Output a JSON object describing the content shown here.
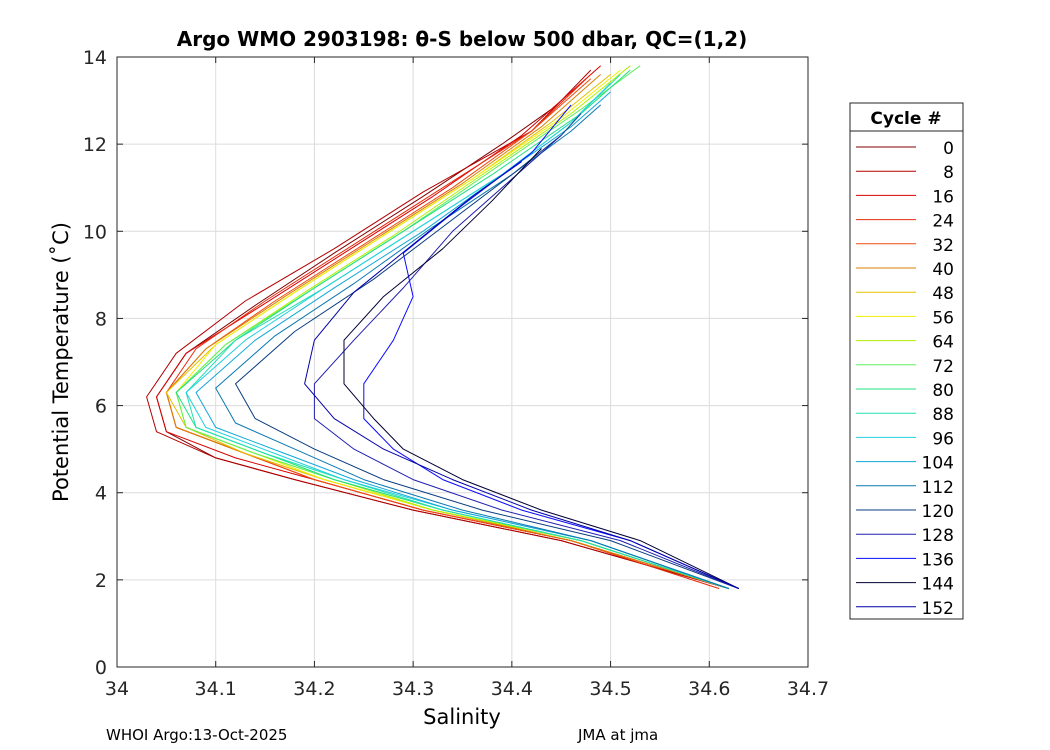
{
  "footer": {
    "left": "WHOI Argo:13-Oct-2025",
    "right": "JMA at jma"
  },
  "chart_data": {
    "type": "line",
    "title": "Argo WMO 2903198: θ-S below 500 dbar,  QC=(1,2)",
    "xlabel": "Salinity",
    "ylabel": "Potential Temperature (˚C)",
    "xlim": [
      34,
      34.7
    ],
    "ylim": [
      0,
      14
    ],
    "xticks": [
      34,
      34.1,
      34.2,
      34.3,
      34.4,
      34.5,
      34.6,
      34.7
    ],
    "xtick_labels": [
      "34",
      "34.1",
      "34.2",
      "34.3",
      "34.4",
      "34.5",
      "34.6",
      "34.7"
    ],
    "yticks": [
      0,
      2,
      4,
      6,
      8,
      10,
      12,
      14
    ],
    "ytick_labels": [
      "0",
      "2",
      "4",
      "6",
      "8",
      "10",
      "12",
      "14"
    ],
    "grid": true,
    "legend": {
      "title": "Cycle #",
      "placement": "right"
    },
    "series": [
      {
        "name": "0",
        "color": "#800000",
        "points": [
          [
            34.62,
            1.8
          ],
          [
            34.45,
            2.9
          ],
          [
            34.3,
            3.6
          ],
          [
            34.18,
            4.3
          ],
          [
            34.1,
            4.8
          ],
          [
            34.05,
            5.4
          ],
          [
            34.04,
            6.2
          ],
          [
            34.07,
            7.2
          ],
          [
            34.14,
            8.3
          ],
          [
            34.22,
            9.5
          ],
          [
            34.31,
            10.8
          ],
          [
            34.39,
            12.0
          ],
          [
            34.44,
            12.8
          ]
        ]
      },
      {
        "name": "8",
        "color": "#b30000",
        "points": [
          [
            34.62,
            1.8
          ],
          [
            34.45,
            2.9
          ],
          [
            34.3,
            3.6
          ],
          [
            34.18,
            4.3
          ],
          [
            34.1,
            4.8
          ],
          [
            34.04,
            5.4
          ],
          [
            34.03,
            6.2
          ],
          [
            34.06,
            7.2
          ],
          [
            34.13,
            8.4
          ],
          [
            34.22,
            9.6
          ],
          [
            34.31,
            10.9
          ],
          [
            34.42,
            12.3
          ],
          [
            34.48,
            13.7
          ]
        ]
      },
      {
        "name": "16",
        "color": "#d90000",
        "points": [
          [
            34.62,
            1.8
          ],
          [
            34.46,
            2.9
          ],
          [
            34.31,
            3.6
          ],
          [
            34.2,
            4.3
          ],
          [
            34.12,
            4.8
          ],
          [
            34.05,
            5.4
          ],
          [
            34.04,
            6.2
          ],
          [
            34.07,
            7.2
          ],
          [
            34.14,
            8.2
          ],
          [
            34.23,
            9.5
          ],
          [
            34.32,
            10.8
          ],
          [
            34.41,
            12.2
          ],
          [
            34.49,
            13.8
          ]
        ]
      },
      {
        "name": "24",
        "color": "#e82a0a",
        "points": [
          [
            34.61,
            1.8
          ],
          [
            34.46,
            2.9
          ],
          [
            34.31,
            3.6
          ],
          [
            34.2,
            4.3
          ],
          [
            34.13,
            4.9
          ],
          [
            34.06,
            5.5
          ],
          [
            34.05,
            6.3
          ],
          [
            34.08,
            7.3
          ],
          [
            34.15,
            8.4
          ],
          [
            34.24,
            9.7
          ],
          [
            34.33,
            11.0
          ],
          [
            34.42,
            12.3
          ],
          [
            34.48,
            13.6
          ]
        ]
      },
      {
        "name": "32",
        "color": "#f04a10",
        "points": [
          [
            34.62,
            1.8
          ],
          [
            34.46,
            2.9
          ],
          [
            34.31,
            3.6
          ],
          [
            34.2,
            4.3
          ],
          [
            34.13,
            4.9
          ],
          [
            34.06,
            5.5
          ],
          [
            34.05,
            6.3
          ],
          [
            34.09,
            7.3
          ],
          [
            34.16,
            8.4
          ],
          [
            34.25,
            9.7
          ],
          [
            34.34,
            11.0
          ],
          [
            34.42,
            12.3
          ],
          [
            34.48,
            13.5
          ]
        ]
      },
      {
        "name": "40",
        "color": "#d98000",
        "points": [
          [
            34.62,
            1.8
          ],
          [
            34.46,
            2.9
          ],
          [
            34.32,
            3.6
          ],
          [
            34.21,
            4.3
          ],
          [
            34.13,
            4.9
          ],
          [
            34.06,
            5.5
          ],
          [
            34.05,
            6.3
          ],
          [
            34.09,
            7.3
          ],
          [
            34.17,
            8.5
          ],
          [
            34.26,
            9.8
          ],
          [
            34.35,
            11.1
          ],
          [
            34.43,
            12.4
          ],
          [
            34.49,
            13.6
          ]
        ]
      },
      {
        "name": "48",
        "color": "#e6c000",
        "points": [
          [
            34.62,
            1.8
          ],
          [
            34.47,
            2.9
          ],
          [
            34.32,
            3.6
          ],
          [
            34.21,
            4.3
          ],
          [
            34.13,
            4.9
          ],
          [
            34.07,
            5.5
          ],
          [
            34.05,
            6.3
          ],
          [
            34.1,
            7.4
          ],
          [
            34.18,
            8.6
          ],
          [
            34.27,
            9.9
          ],
          [
            34.36,
            11.2
          ],
          [
            34.44,
            12.5
          ],
          [
            34.5,
            13.6
          ]
        ]
      },
      {
        "name": "56",
        "color": "#f0f000",
        "points": [
          [
            34.62,
            1.8
          ],
          [
            34.47,
            2.9
          ],
          [
            34.32,
            3.6
          ],
          [
            34.21,
            4.3
          ],
          [
            34.14,
            4.9
          ],
          [
            34.07,
            5.5
          ],
          [
            34.06,
            6.3
          ],
          [
            34.1,
            7.4
          ],
          [
            34.18,
            8.6
          ],
          [
            34.27,
            9.9
          ],
          [
            34.36,
            11.2
          ],
          [
            34.45,
            12.6
          ],
          [
            34.51,
            13.7
          ]
        ]
      },
      {
        "name": "64",
        "color": "#b0f000",
        "points": [
          [
            34.62,
            1.8
          ],
          [
            34.47,
            2.9
          ],
          [
            34.32,
            3.6
          ],
          [
            34.22,
            4.3
          ],
          [
            34.14,
            4.9
          ],
          [
            34.07,
            5.5
          ],
          [
            34.06,
            6.3
          ],
          [
            34.11,
            7.4
          ],
          [
            34.19,
            8.6
          ],
          [
            34.28,
            9.9
          ],
          [
            34.37,
            11.3
          ],
          [
            34.46,
            12.7
          ],
          [
            34.52,
            13.8
          ]
        ]
      },
      {
        "name": "72",
        "color": "#60f060",
        "points": [
          [
            34.62,
            1.8
          ],
          [
            34.47,
            2.9
          ],
          [
            34.33,
            3.6
          ],
          [
            34.22,
            4.3
          ],
          [
            34.14,
            4.9
          ],
          [
            34.07,
            5.5
          ],
          [
            34.06,
            6.3
          ],
          [
            34.11,
            7.4
          ],
          [
            34.2,
            8.7
          ],
          [
            34.29,
            10.0
          ],
          [
            34.38,
            11.4
          ],
          [
            34.47,
            12.8
          ],
          [
            34.53,
            13.8
          ]
        ]
      },
      {
        "name": "80",
        "color": "#20e080",
        "points": [
          [
            34.62,
            1.8
          ],
          [
            34.47,
            2.9
          ],
          [
            34.33,
            3.6
          ],
          [
            34.22,
            4.3
          ],
          [
            34.15,
            4.9
          ],
          [
            34.08,
            5.5
          ],
          [
            34.06,
            6.3
          ],
          [
            34.12,
            7.5
          ],
          [
            34.2,
            8.7
          ],
          [
            34.29,
            10.0
          ],
          [
            34.38,
            11.3
          ],
          [
            34.47,
            12.7
          ],
          [
            34.52,
            13.7
          ]
        ]
      },
      {
        "name": "88",
        "color": "#20e0b0",
        "points": [
          [
            34.62,
            1.8
          ],
          [
            34.47,
            2.9
          ],
          [
            34.33,
            3.6
          ],
          [
            34.23,
            4.3
          ],
          [
            34.15,
            4.9
          ],
          [
            34.08,
            5.5
          ],
          [
            34.07,
            6.3
          ],
          [
            34.12,
            7.5
          ],
          [
            34.21,
            8.7
          ],
          [
            34.3,
            10.0
          ],
          [
            34.39,
            11.3
          ],
          [
            34.46,
            12.5
          ],
          [
            34.51,
            13.6
          ]
        ]
      },
      {
        "name": "96",
        "color": "#20d0e0",
        "points": [
          [
            34.62,
            1.8
          ],
          [
            34.48,
            2.9
          ],
          [
            34.34,
            3.6
          ],
          [
            34.23,
            4.3
          ],
          [
            34.16,
            4.9
          ],
          [
            34.09,
            5.5
          ],
          [
            34.07,
            6.3
          ],
          [
            34.13,
            7.5
          ],
          [
            34.21,
            8.7
          ],
          [
            34.3,
            10.0
          ],
          [
            34.39,
            11.3
          ],
          [
            34.46,
            12.5
          ],
          [
            34.5,
            13.4
          ]
        ]
      },
      {
        "name": "104",
        "color": "#10a8d8",
        "points": [
          [
            34.62,
            1.8
          ],
          [
            34.48,
            2.9
          ],
          [
            34.34,
            3.6
          ],
          [
            34.24,
            4.3
          ],
          [
            34.17,
            4.9
          ],
          [
            34.1,
            5.5
          ],
          [
            34.08,
            6.3
          ],
          [
            34.14,
            7.5
          ],
          [
            34.22,
            8.7
          ],
          [
            34.31,
            10.0
          ],
          [
            34.39,
            11.3
          ],
          [
            34.46,
            12.4
          ],
          [
            34.5,
            13.2
          ]
        ]
      },
      {
        "name": "112",
        "color": "#0a78b0",
        "points": [
          [
            34.62,
            1.8
          ],
          [
            34.48,
            2.9
          ],
          [
            34.35,
            3.6
          ],
          [
            34.25,
            4.3
          ],
          [
            34.18,
            5.0
          ],
          [
            34.12,
            5.6
          ],
          [
            34.1,
            6.4
          ],
          [
            34.16,
            7.6
          ],
          [
            34.24,
            8.8
          ],
          [
            34.32,
            10.1
          ],
          [
            34.4,
            11.3
          ],
          [
            34.46,
            12.3
          ],
          [
            34.49,
            12.9
          ]
        ]
      },
      {
        "name": "120",
        "color": "#0a3c80",
        "points": [
          [
            34.63,
            1.8
          ],
          [
            34.5,
            2.9
          ],
          [
            34.37,
            3.6
          ],
          [
            34.27,
            4.3
          ],
          [
            34.2,
            5.0
          ],
          [
            34.14,
            5.7
          ],
          [
            34.12,
            6.5
          ],
          [
            34.18,
            7.7
          ],
          [
            34.26,
            8.9
          ],
          [
            34.33,
            10.1
          ],
          [
            34.4,
            11.3
          ],
          [
            34.45,
            12.2
          ],
          [
            34.47,
            12.7
          ]
        ]
      },
      {
        "name": "128",
        "color": "#2020b0",
        "points": [
          [
            34.63,
            1.8
          ],
          [
            34.51,
            2.9
          ],
          [
            34.39,
            3.6
          ],
          [
            34.3,
            4.3
          ],
          [
            34.24,
            5.0
          ],
          [
            34.2,
            5.7
          ],
          [
            34.2,
            6.5
          ],
          [
            34.24,
            7.5
          ],
          [
            34.29,
            8.7
          ],
          [
            34.34,
            10.0
          ],
          [
            34.4,
            11.2
          ],
          [
            34.45,
            12.2
          ]
        ]
      },
      {
        "name": "136",
        "color": "#0a0aff",
        "points": [
          [
            34.63,
            1.8
          ],
          [
            34.52,
            2.9
          ],
          [
            34.41,
            3.6
          ],
          [
            34.33,
            4.3
          ],
          [
            34.28,
            5.0
          ],
          [
            34.25,
            5.7
          ],
          [
            34.25,
            6.5
          ],
          [
            34.28,
            7.5
          ],
          [
            34.3,
            8.5
          ],
          [
            34.29,
            9.5
          ],
          [
            34.35,
            10.6
          ],
          [
            34.42,
            11.8
          ],
          [
            34.46,
            12.9
          ]
        ]
      },
      {
        "name": "144",
        "color": "#000033",
        "points": [
          [
            34.63,
            1.8
          ],
          [
            34.53,
            2.9
          ],
          [
            34.43,
            3.6
          ],
          [
            34.35,
            4.3
          ],
          [
            34.29,
            5.0
          ],
          [
            34.26,
            5.7
          ],
          [
            34.23,
            6.5
          ],
          [
            34.23,
            7.5
          ],
          [
            34.27,
            8.5
          ],
          [
            34.33,
            9.6
          ],
          [
            34.38,
            10.7
          ],
          [
            34.43,
            11.9
          ]
        ]
      },
      {
        "name": "152",
        "color": "#0000aa",
        "points": [
          [
            34.63,
            1.8
          ],
          [
            34.52,
            2.9
          ],
          [
            34.42,
            3.6
          ],
          [
            34.34,
            4.3
          ],
          [
            34.27,
            5.0
          ],
          [
            34.22,
            5.7
          ],
          [
            34.19,
            6.5
          ],
          [
            34.2,
            7.5
          ],
          [
            34.24,
            8.6
          ],
          [
            34.3,
            9.7
          ],
          [
            34.36,
            10.8
          ],
          [
            34.41,
            11.6
          ]
        ]
      }
    ]
  }
}
